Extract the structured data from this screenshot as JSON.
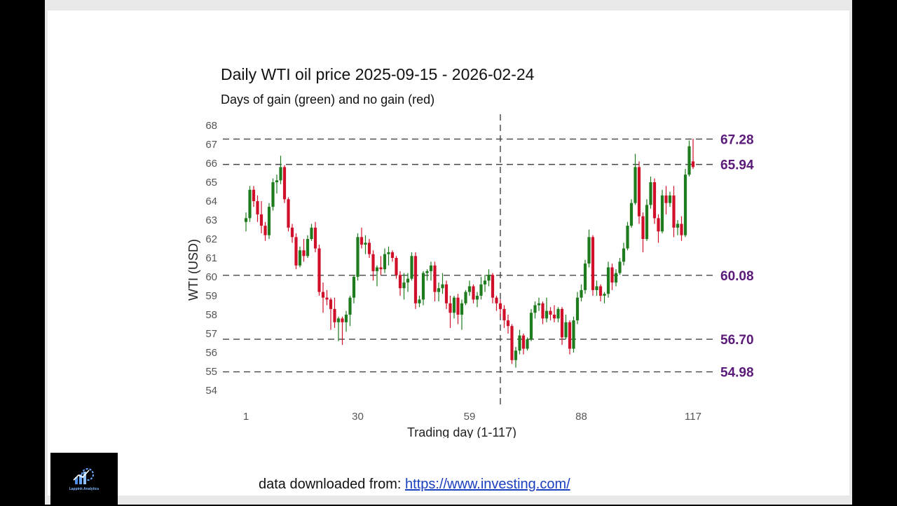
{
  "chart_data": {
    "type": "candlestick",
    "title": "Daily WTI oil price 2025-09-15 - 2026-02-24",
    "subtitle": "Days of gain (green) and no gain (red)",
    "xlabel": "Trading day (1-117)",
    "ylabel": "WTI (USD)",
    "x_ticks": [
      1,
      30,
      59,
      88,
      117
    ],
    "x_range": [
      1,
      117
    ],
    "y_ticks": [
      54,
      55,
      56,
      57,
      58,
      59,
      60,
      61,
      62,
      63,
      64,
      65,
      66,
      67,
      68
    ],
    "ylim": [
      54,
      68
    ],
    "gain_color": "#1e7b1e",
    "loss_color": "#d0102a",
    "vline_day": 67,
    "h_levels": [
      67.28,
      65.94,
      60.08,
      56.7,
      54.98
    ],
    "h_level_labels": [
      "67.28",
      "65.94",
      "60.08",
      "56.70",
      "54.98"
    ],
    "candles": [
      [
        62.9,
        63.4,
        62.4,
        63.1
      ],
      [
        63.1,
        64.8,
        62.9,
        64.6
      ],
      [
        64.6,
        64.8,
        63.7,
        64.0
      ],
      [
        64.0,
        64.3,
        62.9,
        63.3
      ],
      [
        63.3,
        64.0,
        62.3,
        62.7
      ],
      [
        62.7,
        62.9,
        61.9,
        62.2
      ],
      [
        62.2,
        63.9,
        62.0,
        63.7
      ],
      [
        63.7,
        65.2,
        63.5,
        65.0
      ],
      [
        65.0,
        65.4,
        64.4,
        65.1
      ],
      [
        65.1,
        66.4,
        64.9,
        65.8
      ],
      [
        65.8,
        65.9,
        63.9,
        64.1
      ],
      [
        64.1,
        64.2,
        62.4,
        62.6
      ],
      [
        62.6,
        62.8,
        61.8,
        62.1
      ],
      [
        62.1,
        62.3,
        60.4,
        60.6
      ],
      [
        60.6,
        61.6,
        60.5,
        61.4
      ],
      [
        61.4,
        62.0,
        60.8,
        61.1
      ],
      [
        61.1,
        62.2,
        61.0,
        62.0
      ],
      [
        62.0,
        62.8,
        61.9,
        62.6
      ],
      [
        62.6,
        62.9,
        61.3,
        61.5
      ],
      [
        61.5,
        61.7,
        59.0,
        59.2
      ],
      [
        59.2,
        59.7,
        58.1,
        58.9
      ],
      [
        58.9,
        59.3,
        58.5,
        58.8
      ],
      [
        58.8,
        58.9,
        57.2,
        58.3
      ],
      [
        58.3,
        58.9,
        57.3,
        57.6
      ],
      [
        57.6,
        57.9,
        56.6,
        57.8
      ],
      [
        57.8,
        57.9,
        56.4,
        57.6
      ],
      [
        57.6,
        58.2,
        57.1,
        58.0
      ],
      [
        58.0,
        59.0,
        57.4,
        58.9
      ],
      [
        58.9,
        60.1,
        58.6,
        60.0
      ],
      [
        60.0,
        62.3,
        59.8,
        62.1
      ],
      [
        62.1,
        62.6,
        61.5,
        61.7
      ],
      [
        61.7,
        62.2,
        61.2,
        61.8
      ],
      [
        61.8,
        62.0,
        61.0,
        61.2
      ],
      [
        61.2,
        61.4,
        59.8,
        60.3
      ],
      [
        60.3,
        60.6,
        59.5,
        60.5
      ],
      [
        60.5,
        61.1,
        60.1,
        60.4
      ],
      [
        60.4,
        61.5,
        60.2,
        61.2
      ],
      [
        61.2,
        61.6,
        60.6,
        61.3
      ],
      [
        61.3,
        61.4,
        60.8,
        61.0
      ],
      [
        61.0,
        61.1,
        59.9,
        60.1
      ],
      [
        60.1,
        60.3,
        59.0,
        59.4
      ],
      [
        59.4,
        60.2,
        58.8,
        59.7
      ],
      [
        59.7,
        60.2,
        59.2,
        59.9
      ],
      [
        59.9,
        61.3,
        59.8,
        61.1
      ],
      [
        61.1,
        61.3,
        58.3,
        58.6
      ],
      [
        58.6,
        59.0,
        58.4,
        58.8
      ],
      [
        58.8,
        60.3,
        58.5,
        60.2
      ],
      [
        60.2,
        60.4,
        59.8,
        60.3
      ],
      [
        60.3,
        60.8,
        59.8,
        60.6
      ],
      [
        60.6,
        60.8,
        58.7,
        59.2
      ],
      [
        59.2,
        59.7,
        58.7,
        59.4
      ],
      [
        59.4,
        60.2,
        59.1,
        59.6
      ],
      [
        59.6,
        59.8,
        58.3,
        58.6
      ],
      [
        58.6,
        59.0,
        57.3,
        58.1
      ],
      [
        58.1,
        59.0,
        57.8,
        58.9
      ],
      [
        58.9,
        59.1,
        57.5,
        58.0
      ],
      [
        58.0,
        58.8,
        57.2,
        58.6
      ],
      [
        58.6,
        59.3,
        58.5,
        59.2
      ],
      [
        59.2,
        59.8,
        59.0,
        59.5
      ],
      [
        59.5,
        59.6,
        58.6,
        58.8
      ],
      [
        58.8,
        59.2,
        58.4,
        59.0
      ],
      [
        59.0,
        60.0,
        58.8,
        59.6
      ],
      [
        59.6,
        60.1,
        59.2,
        59.8
      ],
      [
        59.8,
        60.4,
        59.5,
        60.1
      ],
      [
        60.1,
        60.2,
        58.6,
        58.9
      ],
      [
        58.9,
        59.0,
        58.2,
        58.6
      ],
      [
        58.6,
        58.8,
        57.9,
        58.3
      ],
      [
        58.3,
        58.5,
        57.3,
        57.7
      ],
      [
        57.7,
        58.0,
        57.0,
        57.4
      ],
      [
        57.4,
        57.5,
        55.4,
        55.6
      ],
      [
        55.6,
        56.3,
        55.2,
        56.1
      ],
      [
        56.1,
        57.2,
        55.9,
        56.9
      ],
      [
        56.9,
        57.0,
        55.9,
        56.2
      ],
      [
        56.2,
        56.8,
        56.1,
        56.7
      ],
      [
        56.7,
        58.3,
        56.6,
        58.1
      ],
      [
        58.1,
        58.7,
        57.8,
        58.5
      ],
      [
        58.5,
        58.9,
        58.2,
        58.6
      ],
      [
        58.6,
        58.7,
        57.5,
        57.8
      ],
      [
        57.8,
        58.9,
        57.6,
        58.2
      ],
      [
        58.2,
        58.4,
        57.7,
        58.0
      ],
      [
        58.0,
        58.5,
        57.6,
        57.8
      ],
      [
        57.8,
        58.4,
        57.6,
        58.3
      ],
      [
        58.3,
        58.4,
        56.4,
        56.8
      ],
      [
        56.8,
        58.0,
        56.7,
        57.6
      ],
      [
        57.6,
        57.7,
        55.9,
        56.2
      ],
      [
        56.2,
        57.9,
        56.0,
        57.7
      ],
      [
        57.7,
        59.2,
        57.5,
        58.9
      ],
      [
        58.9,
        59.6,
        58.7,
        59.3
      ],
      [
        59.3,
        60.9,
        59.1,
        60.7
      ],
      [
        60.7,
        62.5,
        60.5,
        62.1
      ],
      [
        62.1,
        62.2,
        59.0,
        59.3
      ],
      [
        59.3,
        59.8,
        59.0,
        59.5
      ],
      [
        59.5,
        59.6,
        58.7,
        59.0
      ],
      [
        59.0,
        59.2,
        58.6,
        59.1
      ],
      [
        59.1,
        60.8,
        58.9,
        60.5
      ],
      [
        60.5,
        60.7,
        59.3,
        59.7
      ],
      [
        59.7,
        60.4,
        59.5,
        60.2
      ],
      [
        60.2,
        61.0,
        60.1,
        60.8
      ],
      [
        60.8,
        61.8,
        60.6,
        61.5
      ],
      [
        61.5,
        62.9,
        61.4,
        62.7
      ],
      [
        62.7,
        64.1,
        62.6,
        63.9
      ],
      [
        63.9,
        66.5,
        63.8,
        65.8
      ],
      [
        65.8,
        66.1,
        62.8,
        63.2
      ],
      [
        63.2,
        63.4,
        61.3,
        62.0
      ],
      [
        62.0,
        64.1,
        61.9,
        63.8
      ],
      [
        63.8,
        65.3,
        63.6,
        65.0
      ],
      [
        65.0,
        65.2,
        62.8,
        63.1
      ],
      [
        63.1,
        63.3,
        61.8,
        62.4
      ],
      [
        62.4,
        64.6,
        62.3,
        64.3
      ],
      [
        64.3,
        64.8,
        63.3,
        63.9
      ],
      [
        63.9,
        64.5,
        63.7,
        64.3
      ],
      [
        64.3,
        64.8,
        62.1,
        62.6
      ],
      [
        62.6,
        63.0,
        62.2,
        62.8
      ],
      [
        62.8,
        63.2,
        61.9,
        62.2
      ],
      [
        62.2,
        65.7,
        62.1,
        65.4
      ],
      [
        65.4,
        67.2,
        65.3,
        66.9
      ],
      [
        66.1,
        67.3,
        65.7,
        65.8
      ]
    ]
  },
  "source": {
    "prefix": "data downloaded from:",
    "link_text": "https://www.investing.com/"
  },
  "logo": {
    "name": "Lappink Analytics",
    "icon": "chart-gear-logo-icon"
  }
}
